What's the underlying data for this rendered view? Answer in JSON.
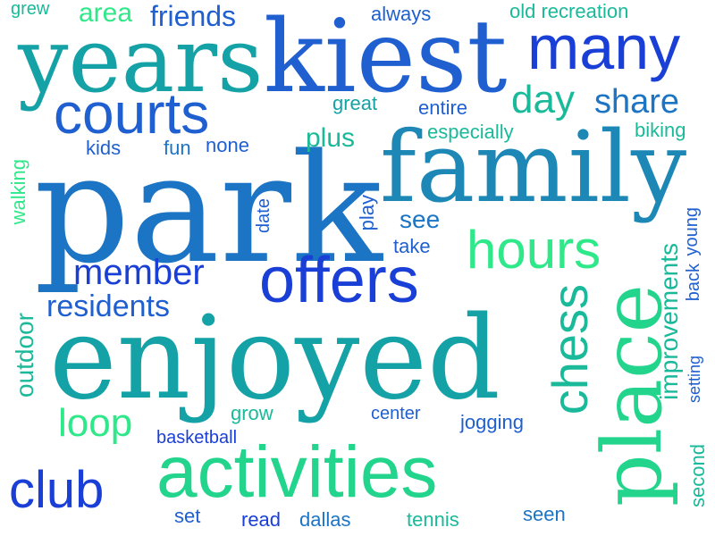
{
  "palette": {
    "blue_dark": "#1a3fd6",
    "blue": "#1f5fd0",
    "blue_mid": "#1c74c4",
    "teal_blue": "#1d88b6",
    "teal": "#14a2a6",
    "teal_green": "#1ab99a",
    "green": "#22d48c",
    "green_light": "#2fe88a"
  },
  "words": [
    "park",
    "enjoyed",
    "family",
    "kiest",
    "years",
    "activities",
    "place",
    "many",
    "courts",
    "offers",
    "hours",
    "club",
    "chess",
    "member",
    "day",
    "share",
    "residents",
    "loop",
    "friends",
    "area",
    "plus",
    "improvements",
    "outdoor",
    "see",
    "great",
    "entire",
    "especially",
    "kids",
    "fun",
    "none",
    "biking",
    "walking",
    "date",
    "play",
    "take",
    "basketball",
    "grow",
    "center",
    "jogging",
    "set",
    "read",
    "dallas",
    "tennis",
    "seen",
    "setting",
    "back",
    "young",
    "second",
    "grew",
    "always",
    "old recreation"
  ]
}
